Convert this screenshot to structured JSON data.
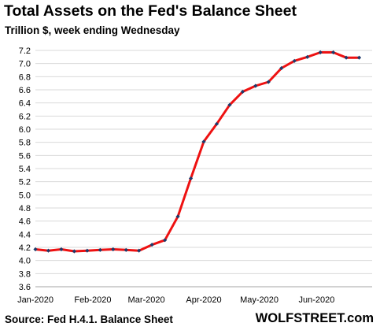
{
  "chart_data": {
    "type": "line",
    "title": "Total Assets on the Fed's Balance Sheet",
    "subtitle": "Trillion $, week ending Wednesday",
    "source": "Source: Fed H.4.1. Balance Sheet",
    "brand": "WOLFSTREET.com",
    "xlabel": "",
    "ylabel": "",
    "ylim": [
      3.6,
      7.2
    ],
    "yticks": [
      "3.6",
      "3.8",
      "4.0",
      "4.2",
      "4.4",
      "4.6",
      "4.8",
      "5.0",
      "5.2",
      "5.4",
      "5.6",
      "5.8",
      "6.0",
      "6.2",
      "6.4",
      "6.6",
      "6.8",
      "7.0",
      "7.2"
    ],
    "xticks": [
      "Jan-2020",
      "Feb-2020",
      "Mar-2020",
      "Apr-2020",
      "May-2020",
      "Jun-2020"
    ],
    "grid": "horizontal",
    "legend": "none",
    "line_color": "#ee1111",
    "marker_color": "#1f3a6a",
    "grid_color": "#d9d9d9",
    "x": [
      "2020-01-01",
      "2020-01-08",
      "2020-01-15",
      "2020-01-22",
      "2020-01-29",
      "2020-02-05",
      "2020-02-12",
      "2020-02-19",
      "2020-02-26",
      "2020-03-04",
      "2020-03-11",
      "2020-03-18",
      "2020-03-25",
      "2020-04-01",
      "2020-04-08",
      "2020-04-15",
      "2020-04-22",
      "2020-04-29",
      "2020-05-06",
      "2020-05-13",
      "2020-05-20",
      "2020-05-27",
      "2020-06-03",
      "2020-06-10",
      "2020-06-17",
      "2020-06-24"
    ],
    "series": [
      {
        "values": [
          4.17,
          4.15,
          4.17,
          4.14,
          4.15,
          4.16,
          4.17,
          4.16,
          4.15,
          4.24,
          4.31,
          4.67,
          5.25,
          5.81,
          6.08,
          6.37,
          6.57,
          6.66,
          6.72,
          6.93,
          7.04,
          7.1,
          7.17,
          7.17,
          7.09,
          7.09
        ]
      }
    ]
  }
}
